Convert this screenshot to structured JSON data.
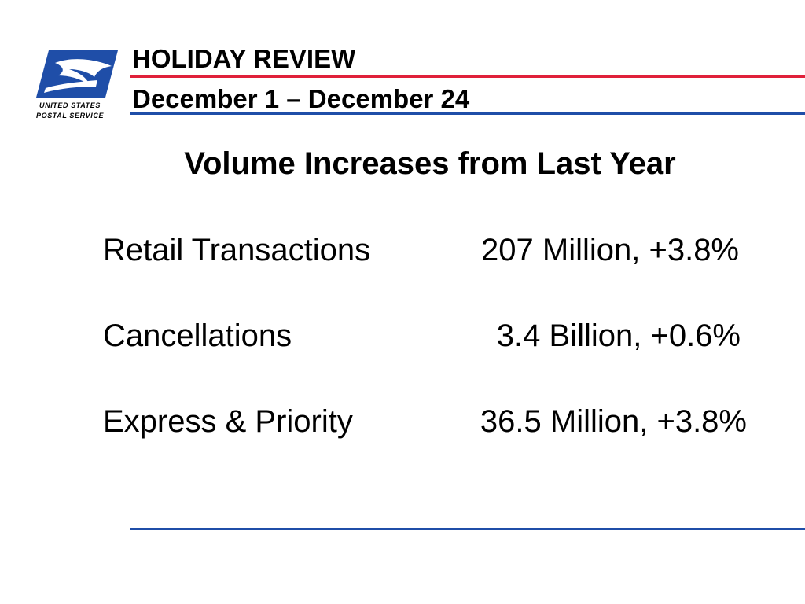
{
  "logo": {
    "line1": "UNITED STATES",
    "line2": "POSTAL SERVICE",
    "brand_blue": "#1f4ea8"
  },
  "header": {
    "title": "HOLIDAY REVIEW",
    "subtitle": "December 1 – December 24",
    "accent_red": "#e0203a",
    "accent_blue": "#1f4ea8"
  },
  "slide": {
    "heading": "Volume Increases from Last Year",
    "stats": [
      {
        "label": "Retail Transactions",
        "value": "207 Million, +3.8%"
      },
      {
        "label": "Cancellations",
        "value": "3.4 Billion, +0.6%"
      },
      {
        "label": "Express & Priority",
        "value": "36.5 Million, +3.8%"
      }
    ]
  }
}
